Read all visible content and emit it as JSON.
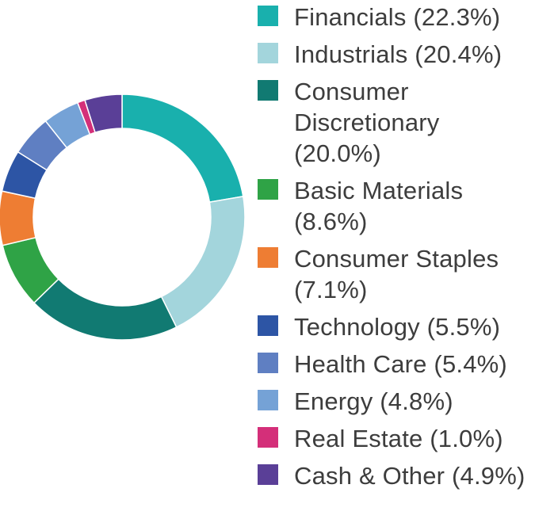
{
  "chart_data": {
    "type": "pie",
    "variant": "donut",
    "title": "",
    "start_angle_deg": 0,
    "direction": "clockwise",
    "legend_position": "right",
    "slices": [
      {
        "label": "Financials (22.3%)",
        "value": 22.3,
        "color": "#19b0ad"
      },
      {
        "label": "Industrials (20.4%)",
        "value": 20.4,
        "color": "#a3d5dc"
      },
      {
        "label": "Consumer Discretionary (20.0%)",
        "value": 20.0,
        "color": "#117a72"
      },
      {
        "label": "Basic Materials (8.6%)",
        "value": 8.6,
        "color": "#2fa346"
      },
      {
        "label": "Consumer Staples (7.1%)",
        "value": 7.1,
        "color": "#ee7d33"
      },
      {
        "label": "Technology (5.5%)",
        "value": 5.5,
        "color": "#2d55a5"
      },
      {
        "label": "Health Care (5.4%)",
        "value": 5.4,
        "color": "#5f7fc2"
      },
      {
        "label": "Energy (4.8%)",
        "value": 4.8,
        "color": "#75a2d6"
      },
      {
        "label": "Real Estate (1.0%)",
        "value": 1.0,
        "color": "#d42f79"
      },
      {
        "label": "Cash & Other (4.9%)",
        "value": 4.9,
        "color": "#5a3f97"
      }
    ]
  }
}
